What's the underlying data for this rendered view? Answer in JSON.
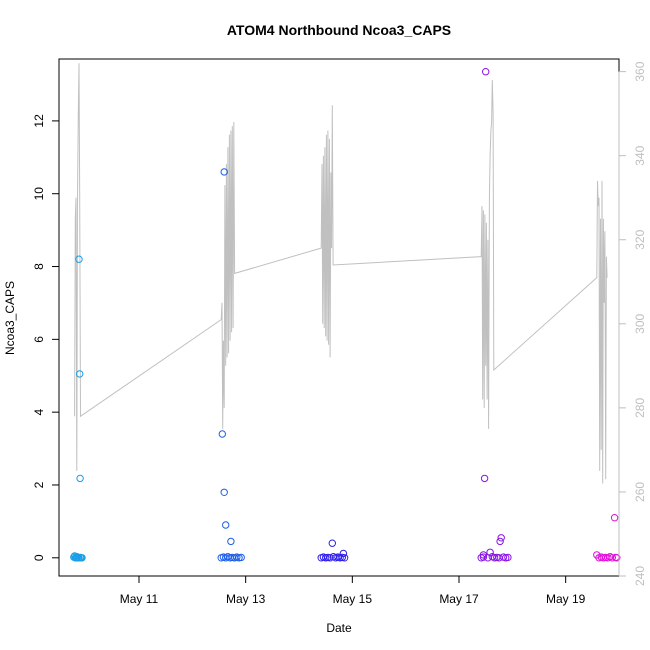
{
  "chart_data": {
    "type": "scatter",
    "title": "ATOM4 Northbound Ncoa3_CAPS",
    "xlabel": "Date",
    "ylabel": "Ncoa3_CAPS",
    "x_date_range": [
      "2024-05-09T12:00:00",
      "2024-05-20T00:00:00"
    ],
    "x_ticks": [
      {
        "value": "2024-05-11",
        "label": "May 11"
      },
      {
        "value": "2024-05-13",
        "label": "May 13"
      },
      {
        "value": "2024-05-15",
        "label": "May 15"
      },
      {
        "value": "2024-05-17",
        "label": "May 17"
      },
      {
        "value": "2024-05-19",
        "label": "May 19"
      }
    ],
    "ylim": [
      -0.5,
      13.7
    ],
    "y_ticks": [
      0,
      2,
      4,
      6,
      8,
      10,
      12
    ],
    "y2lim": [
      240,
      363
    ],
    "y2_ticks": [
      240,
      260,
      280,
      300,
      320,
      340,
      360
    ],
    "grid": false,
    "legend": "none",
    "series": [
      {
        "color": "#1a9ee8",
        "points": [
          [
            "2024-05-09T21:00",
            8.2
          ],
          [
            "2024-05-09T21:20",
            5.05
          ],
          [
            "2024-05-09T21:30",
            2.18
          ],
          [
            "2024-05-09T19:00",
            0.05
          ],
          [
            "2024-05-09T19:40",
            0.0
          ],
          [
            "2024-05-09T20:20",
            0.02
          ],
          [
            "2024-05-09T21:00",
            0.0
          ],
          [
            "2024-05-09T21:40",
            0.01
          ],
          [
            "2024-05-09T22:20",
            0.0
          ],
          [
            "2024-05-09T19:20",
            0.0
          ],
          [
            "2024-05-09T20:00",
            0.03
          ],
          [
            "2024-05-09T20:40",
            0.0
          ],
          [
            "2024-05-09T22:00",
            0.0
          ],
          [
            "2024-05-09T18:40",
            0.02
          ]
        ]
      },
      {
        "color": "#1f5fe6",
        "points": [
          [
            "2024-05-12T14:20",
            10.6
          ],
          [
            "2024-05-12T13:30",
            3.4
          ],
          [
            "2024-05-12T14:20",
            1.8
          ],
          [
            "2024-05-12T15:00",
            0.9
          ],
          [
            "2024-05-12T17:20",
            0.45
          ],
          [
            "2024-05-12T13:00",
            0.0
          ],
          [
            "2024-05-12T14:00",
            0.02
          ],
          [
            "2024-05-12T15:00",
            0.0
          ],
          [
            "2024-05-12T16:00",
            0.03
          ],
          [
            "2024-05-12T17:00",
            0.0
          ],
          [
            "2024-05-12T18:00",
            0.01
          ],
          [
            "2024-05-12T19:00",
            0.0
          ],
          [
            "2024-05-12T20:00",
            0.02
          ],
          [
            "2024-05-12T21:00",
            0.0
          ],
          [
            "2024-05-12T22:00",
            0.01
          ]
        ]
      },
      {
        "color": "#2f1fe8",
        "points": [
          [
            "2024-05-14T15:00",
            0.4
          ],
          [
            "2024-05-14T20:00",
            0.12
          ],
          [
            "2024-05-14T10:00",
            0.0
          ],
          [
            "2024-05-14T11:00",
            0.02
          ],
          [
            "2024-05-14T12:00",
            0.0
          ],
          [
            "2024-05-14T13:00",
            0.01
          ],
          [
            "2024-05-14T14:00",
            0.0
          ],
          [
            "2024-05-14T15:30",
            0.03
          ],
          [
            "2024-05-14T16:30",
            0.0
          ],
          [
            "2024-05-14T17:30",
            0.02
          ],
          [
            "2024-05-14T18:30",
            0.0
          ],
          [
            "2024-05-14T19:30",
            0.01
          ],
          [
            "2024-05-14T20:30",
            0.0
          ]
        ]
      },
      {
        "color": "#8a14e6",
        "points": [
          [
            "2024-05-17T12:00",
            13.35
          ],
          [
            "2024-05-17T11:30",
            2.18
          ],
          [
            "2024-05-17T19:00",
            0.55
          ],
          [
            "2024-05-17T18:30",
            0.45
          ],
          [
            "2024-05-17T14:00",
            0.15
          ],
          [
            "2024-05-17T11:00",
            0.08
          ],
          [
            "2024-05-17T10:00",
            0.0
          ],
          [
            "2024-05-17T11:00",
            0.02
          ],
          [
            "2024-05-17T13:00",
            0.0
          ],
          [
            "2024-05-17T15:00",
            0.03
          ],
          [
            "2024-05-17T16:00",
            0.0
          ],
          [
            "2024-05-17T17:00",
            0.01
          ],
          [
            "2024-05-17T18:00",
            0.0
          ],
          [
            "2024-05-17T20:00",
            0.02
          ],
          [
            "2024-05-17T21:00",
            0.0
          ],
          [
            "2024-05-17T22:00",
            0.01
          ]
        ]
      },
      {
        "color": "#e010d8",
        "points": [
          [
            "2024-05-19T22:00",
            1.1
          ],
          [
            "2024-05-19T14:00",
            0.08
          ],
          [
            "2024-05-19T15:00",
            0.0
          ],
          [
            "2024-05-19T16:00",
            0.02
          ],
          [
            "2024-05-19T17:00",
            0.0
          ],
          [
            "2024-05-19T18:00",
            0.01
          ],
          [
            "2024-05-19T19:00",
            0.0
          ],
          [
            "2024-05-19T20:00",
            0.03
          ],
          [
            "2024-05-19T21:00",
            0.0
          ],
          [
            "2024-05-19T22:30",
            0.01
          ],
          [
            "2024-05-19T23:00",
            0.0
          ]
        ]
      }
    ],
    "line_series": {
      "axis": "right",
      "color": "#c0c0c0",
      "points": [
        [
          "2024-05-09T19:00",
          278
        ],
        [
          "2024-05-09T19:20",
          325
        ],
        [
          "2024-05-09T19:40",
          330
        ],
        [
          "2024-05-09T20:00",
          265
        ],
        [
          "2024-05-09T20:20",
          330
        ],
        [
          "2024-05-09T20:40",
          350
        ],
        [
          "2024-05-09T21:00",
          362
        ],
        [
          "2024-05-09T21:20",
          330
        ],
        [
          "2024-05-09T21:40",
          278
        ],
        [
          "2024-05-12T13:00",
          301
        ],
        [
          "2024-05-12T13:20",
          305
        ],
        [
          "2024-05-12T13:40",
          275
        ],
        [
          "2024-05-12T14:00",
          296
        ],
        [
          "2024-05-12T14:20",
          280
        ],
        [
          "2024-05-12T14:40",
          333
        ],
        [
          "2024-05-12T15:00",
          290
        ],
        [
          "2024-05-12T15:20",
          338
        ],
        [
          "2024-05-12T15:40",
          292
        ],
        [
          "2024-05-12T16:00",
          342
        ],
        [
          "2024-05-12T16:20",
          293
        ],
        [
          "2024-05-12T16:40",
          345
        ],
        [
          "2024-05-12T17:00",
          296
        ],
        [
          "2024-05-12T17:20",
          346
        ],
        [
          "2024-05-12T17:40",
          298
        ],
        [
          "2024-05-12T18:00",
          347
        ],
        [
          "2024-05-12T18:20",
          299
        ],
        [
          "2024-05-12T18:40",
          348
        ],
        [
          "2024-05-12T19:00",
          312
        ],
        [
          "2024-05-14T10:00",
          318
        ],
        [
          "2024-05-14T10:20",
          338
        ],
        [
          "2024-05-14T10:40",
          300
        ],
        [
          "2024-05-14T11:00",
          340
        ],
        [
          "2024-05-14T11:20",
          299
        ],
        [
          "2024-05-14T11:40",
          342
        ],
        [
          "2024-05-14T12:00",
          297
        ],
        [
          "2024-05-14T12:20",
          345
        ],
        [
          "2024-05-14T12:40",
          296
        ],
        [
          "2024-05-14T13:00",
          346
        ],
        [
          "2024-05-14T13:20",
          295
        ],
        [
          "2024-05-14T13:40",
          344
        ],
        [
          "2024-05-14T14:00",
          292
        ],
        [
          "2024-05-14T14:20",
          336
        ],
        [
          "2024-05-14T14:40",
          318
        ],
        [
          "2024-05-14T15:00",
          352
        ],
        [
          "2024-05-14T15:20",
          314
        ],
        [
          "2024-05-17T10:00",
          316
        ],
        [
          "2024-05-17T10:20",
          328
        ],
        [
          "2024-05-17T10:40",
          282
        ],
        [
          "2024-05-17T11:00",
          327
        ],
        [
          "2024-05-17T11:20",
          280
        ],
        [
          "2024-05-17T11:40",
          326
        ],
        [
          "2024-05-17T12:00",
          290
        ],
        [
          "2024-05-17T12:20",
          324
        ],
        [
          "2024-05-17T12:40",
          282
        ],
        [
          "2024-05-17T13:00",
          320
        ],
        [
          "2024-05-17T13:20",
          275
        ],
        [
          "2024-05-17T13:40",
          330
        ],
        [
          "2024-05-17T14:00",
          340
        ],
        [
          "2024-05-17T14:20",
          346
        ],
        [
          "2024-05-17T14:40",
          348
        ],
        [
          "2024-05-17T15:00",
          358
        ],
        [
          "2024-05-17T15:20",
          350
        ],
        [
          "2024-05-17T15:40",
          289
        ],
        [
          "2024-05-19T14:00",
          311
        ],
        [
          "2024-05-19T14:20",
          334
        ],
        [
          "2024-05-19T14:40",
          328
        ],
        [
          "2024-05-19T15:00",
          330
        ],
        [
          "2024-05-19T15:20",
          265
        ],
        [
          "2024-05-19T15:40",
          325
        ],
        [
          "2024-05-19T16:00",
          270
        ],
        [
          "2024-05-19T16:20",
          334
        ],
        [
          "2024-05-19T16:40",
          262
        ],
        [
          "2024-05-19T17:00",
          325
        ],
        [
          "2024-05-19T17:20",
          305
        ],
        [
          "2024-05-19T17:40",
          322
        ],
        [
          "2024-05-19T18:00",
          263
        ],
        [
          "2024-05-19T18:20",
          316
        ],
        [
          "2024-05-19T18:40",
          311
        ]
      ]
    }
  }
}
